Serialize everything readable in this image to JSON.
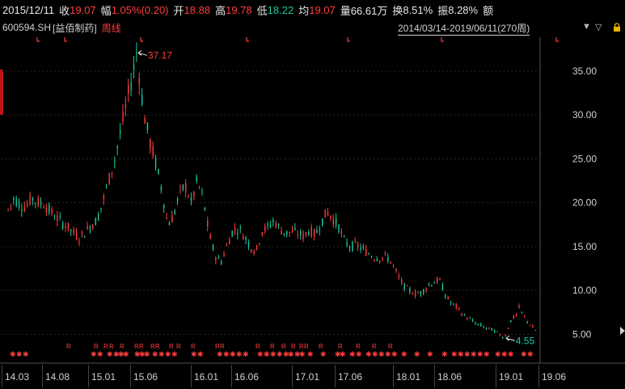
{
  "header": {
    "date": "2015/12/11",
    "close_label": "收",
    "close": "19.07",
    "change_label": "幅",
    "change": "1.05%(0.20)",
    "open_label": "开",
    "open": "18.88",
    "high_label": "高",
    "high": "19.78",
    "low_label": "低",
    "low": "18.22",
    "avg_label": "均",
    "avg": "19.07",
    "vol_label": "量",
    "volume": "66.61万",
    "turn_label": "换",
    "turnover": "8.51%",
    "amp_label": "振",
    "amplitude": "8.28%",
    "amount_label": "额"
  },
  "subheader": {
    "code": "600594.SH",
    "name": "[益佰制药]",
    "period": "周线",
    "range": "2014/03/14-2019/06/11(270周)"
  },
  "colors": {
    "up": "#ff3d3d",
    "down": "#19c8a0",
    "bg": "#000000",
    "grid": "#262626",
    "axis": "#d0d0d0"
  },
  "annotations": {
    "max": "37.17",
    "min": "4.55"
  },
  "chart_data": {
    "type": "candlestick",
    "y_ticks": [
      "35.00",
      "30.00",
      "25.00",
      "20.00",
      "15.00",
      "10.00",
      "5.00"
    ],
    "ylim": [
      3.1,
      38.5
    ],
    "x_ticks": [
      "14.03",
      "14.08",
      "15.01",
      "15.06",
      "16.01",
      "16.06",
      "17.01",
      "17.06",
      "18.01",
      "18.06",
      "19.01",
      "19.06"
    ],
    "points": [
      [
        0,
        19.2
      ],
      [
        4,
        20.5
      ],
      [
        8,
        19.8
      ],
      [
        12,
        19.5
      ],
      [
        16,
        20.6
      ],
      [
        20,
        20.0
      ],
      [
        24,
        19.9
      ],
      [
        28,
        19.1
      ],
      [
        32,
        18.4
      ],
      [
        36,
        17.8
      ],
      [
        40,
        17.3
      ],
      [
        44,
        16.6
      ],
      [
        48,
        16.0
      ],
      [
        52,
        16.6
      ],
      [
        56,
        17.4
      ],
      [
        60,
        18.0
      ],
      [
        64,
        20.0
      ],
      [
        68,
        22.5
      ],
      [
        72,
        24.8
      ],
      [
        76,
        28.0
      ],
      [
        80,
        31.2
      ],
      [
        84,
        34.4
      ],
      [
        87,
        37.17
      ],
      [
        92,
        30.0
      ],
      [
        96,
        27.0
      ],
      [
        100,
        24.5
      ],
      [
        104,
        21.5
      ],
      [
        108,
        17.5
      ],
      [
        112,
        18.5
      ],
      [
        116,
        21.0
      ],
      [
        120,
        22.0
      ],
      [
        124,
        20.0
      ],
      [
        128,
        22.5
      ],
      [
        132,
        20.5
      ],
      [
        136,
        16.5
      ],
      [
        140,
        14.0
      ],
      [
        144,
        13.2
      ],
      [
        148,
        15.0
      ],
      [
        152,
        16.8
      ],
      [
        156,
        17.0
      ],
      [
        160,
        16.2
      ],
      [
        164,
        15.0
      ],
      [
        168,
        14.5
      ],
      [
        172,
        16.8
      ],
      [
        176,
        17.2
      ],
      [
        180,
        18.0
      ],
      [
        184,
        17.0
      ],
      [
        188,
        16.5
      ],
      [
        192,
        16.7
      ],
      [
        196,
        16.5
      ],
      [
        200,
        16.2
      ],
      [
        204,
        16.9
      ],
      [
        208,
        16.3
      ],
      [
        212,
        17.8
      ],
      [
        216,
        19.0
      ],
      [
        220,
        18.2
      ],
      [
        224,
        17.2
      ],
      [
        228,
        15.5
      ],
      [
        232,
        15.0
      ],
      [
        236,
        15.2
      ],
      [
        240,
        14.7
      ],
      [
        244,
        14.2
      ],
      [
        248,
        13.8
      ],
      [
        252,
        13.7
      ],
      [
        256,
        13.9
      ],
      [
        260,
        13.1
      ],
      [
        264,
        11.6
      ],
      [
        268,
        10.5
      ],
      [
        272,
        10.0
      ],
      [
        276,
        9.6
      ],
      [
        280,
        9.8
      ],
      [
        284,
        10.5
      ],
      [
        288,
        10.9
      ],
      [
        292,
        11.2
      ],
      [
        296,
        9.5
      ],
      [
        300,
        8.5
      ],
      [
        304,
        8.1
      ],
      [
        308,
        7.2
      ],
      [
        312,
        6.8
      ],
      [
        316,
        6.3
      ],
      [
        320,
        6.0
      ],
      [
        324,
        5.7
      ],
      [
        328,
        5.5
      ],
      [
        332,
        5.1
      ],
      [
        336,
        4.55
      ],
      [
        340,
        6.5
      ],
      [
        344,
        7.2
      ],
      [
        346,
        8.0
      ],
      [
        350,
        6.8
      ],
      [
        354,
        6.0
      ],
      [
        358,
        5.3
      ]
    ]
  }
}
